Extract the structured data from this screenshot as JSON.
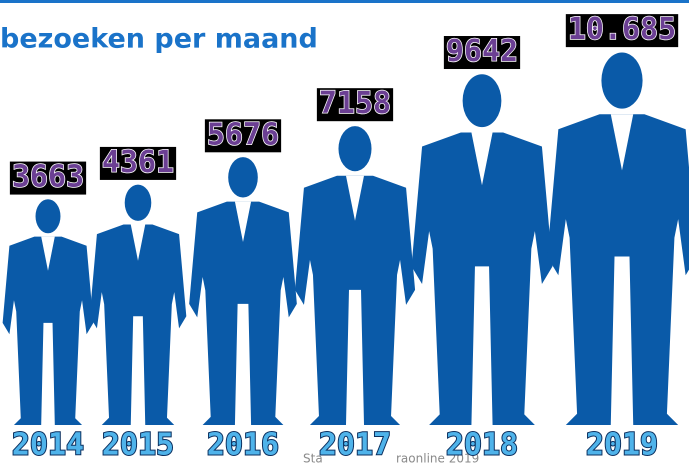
{
  "chart_data": {
    "type": "pictogram",
    "title": "bezoeken per maand",
    "categories": [
      "2014",
      "2015",
      "2016",
      "2017",
      "2018",
      "2019"
    ],
    "values": [
      3663,
      4361,
      5676,
      7158,
      9642,
      10685
    ],
    "value_labels": [
      "3663",
      "4361",
      "5676",
      "7158",
      "9642",
      "10.685"
    ],
    "color": "#0a5aa8",
    "source": [
      "Sta",
      "raonline 2019"
    ]
  }
}
